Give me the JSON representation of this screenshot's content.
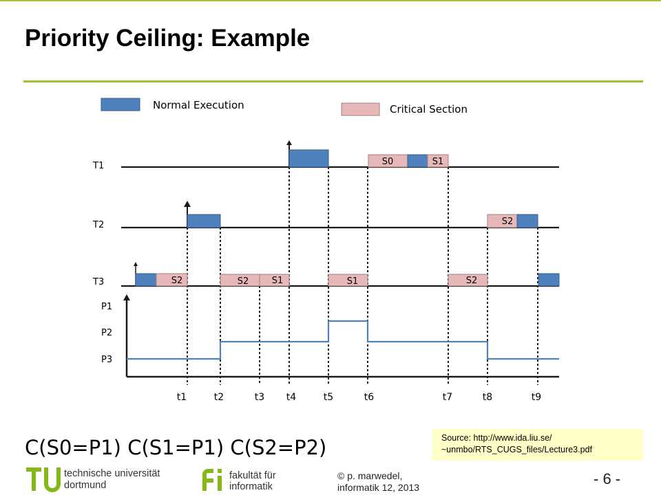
{
  "slide": {
    "title": "Priority Ceiling: Example",
    "ceiling_text": "C(S0=P1) C(S1=P1) C(S2=P2)",
    "source_line1": "Source: http://www.ida.liu.se/",
    "source_line2": "~unmbo/RTS_CUGS_files/Lecture3.pdf"
  },
  "legend": {
    "normal": "Normal Execution",
    "critical": "Critical Section"
  },
  "tasks": [
    "T1",
    "T2",
    "T3"
  ],
  "priorities": [
    "P1",
    "P2",
    "P3"
  ],
  "times": [
    "t1",
    "t2",
    "t3",
    "t4",
    "t5",
    "t6",
    "t7",
    "t8",
    "t9"
  ],
  "sections": {
    "t1_s0": "S0",
    "t1_s1": "S1",
    "t2_s2": "S2",
    "t3_s2a": "S2",
    "t3_s2b": "S2",
    "t3_s1a": "S1",
    "t3_s1b": "S1",
    "t3_s2c": "S2"
  },
  "colors": {
    "normal": "#4f81bd",
    "critical": "#e6b9b8",
    "accent": "#9cbf33",
    "priority_line": "#4f81bd"
  },
  "footer": {
    "tu_line1": "technische universität",
    "tu_line2": "dortmund",
    "fi_line1": "fakultät für",
    "fi_line2": "informatik",
    "author_line1": "© p. marwedel,",
    "author_line2": "informatik 12,  2013",
    "page": "- 6 -"
  }
}
